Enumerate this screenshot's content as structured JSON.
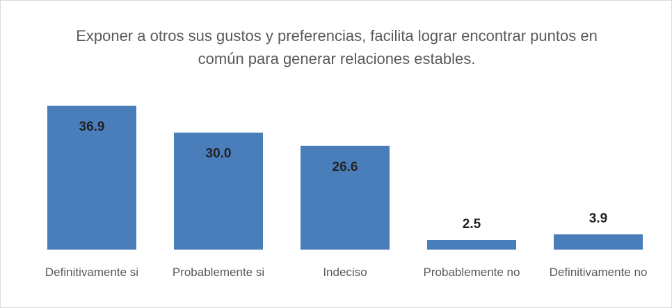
{
  "chart_data": {
    "type": "bar",
    "title": "Exponer a otros sus gustos y preferencias, facilita lograr encontrar puntos en común para generar relaciones estables.",
    "categories": [
      "Definitivamente si",
      "Probablemente si",
      "Indeciso",
      "Probablemente no",
      "Definitivamente no"
    ],
    "values": [
      36.9,
      30.0,
      26.6,
      2.5,
      3.9
    ],
    "value_labels": [
      "36.9",
      "30.0",
      "26.6",
      "2.5",
      "3.9"
    ],
    "color": "#4a7ebb"
  }
}
